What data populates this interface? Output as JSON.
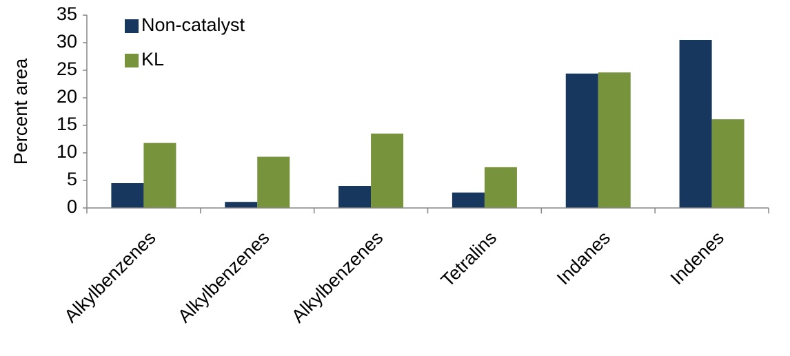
{
  "chart_data": {
    "type": "bar",
    "y_label": "Percent  area",
    "categories": [
      "Alkylbenzenes",
      "Alkylbenzenes",
      "Alkylbenzenes",
      "Tetralins",
      "Indanes",
      "Indenes"
    ],
    "series": [
      {
        "name": "Non-catalyst",
        "color": "#17375e",
        "values": [
          4.5,
          1.1,
          4.0,
          2.8,
          24.4,
          30.5
        ]
      },
      {
        "name": "KL",
        "color": "#77933c",
        "values": [
          11.8,
          9.3,
          13.5,
          7.4,
          24.6,
          16.1
        ]
      }
    ],
    "ylim": [
      0,
      35
    ],
    "yticks": [
      0,
      5,
      10,
      15,
      20,
      25,
      30,
      35
    ],
    "grid": false,
    "legend": "top-left"
  }
}
